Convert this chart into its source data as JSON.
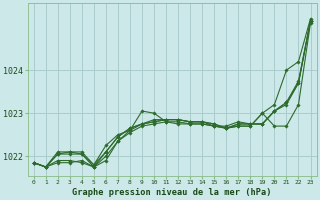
{
  "title": "Graphe pression niveau de la mer (hPa)",
  "bg_color": "#cce8e8",
  "grid_color": "#aacccc",
  "line_color": "#2d6b2d",
  "x_labels": [
    "0",
    "1",
    "2",
    "3",
    "4",
    "5",
    "6",
    "7",
    "8",
    "9",
    "10",
    "11",
    "12",
    "13",
    "14",
    "15",
    "16",
    "17",
    "18",
    "19",
    "20",
    "21",
    "22",
    "23"
  ],
  "ylim": [
    1021.55,
    1025.55
  ],
  "yticks": [
    1022,
    1023,
    1024
  ],
  "ytick_labels": [
    "1022",
    "1023",
    "1024"
  ],
  "figsize": [
    3.2,
    2.0
  ],
  "dpi": 100,
  "series": [
    [
      1021.85,
      1021.75,
      1021.85,
      1021.85,
      1021.9,
      1021.75,
      1021.9,
      1022.35,
      1022.6,
      1023.05,
      1023.0,
      1022.8,
      1022.75,
      1022.75,
      1022.75,
      1022.7,
      1022.65,
      1022.7,
      1022.7,
      1023.0,
      1022.7,
      1022.7,
      1023.2,
      1025.1
    ],
    [
      1021.85,
      1021.75,
      1022.05,
      1022.1,
      1022.05,
      1021.75,
      1022.1,
      1022.45,
      1022.65,
      1022.75,
      1022.8,
      1022.85,
      1022.85,
      1022.8,
      1022.8,
      1022.75,
      1022.65,
      1022.75,
      1022.75,
      1022.75,
      1023.05,
      1023.25,
      1023.7,
      1025.15
    ],
    [
      1021.85,
      1021.75,
      1022.1,
      1022.1,
      1022.1,
      1021.8,
      1022.25,
      1022.5,
      1022.6,
      1022.75,
      1022.85,
      1022.85,
      1022.85,
      1022.8,
      1022.8,
      1022.7,
      1022.7,
      1022.8,
      1022.75,
      1022.75,
      1023.05,
      1023.25,
      1023.75,
      1025.15
    ],
    [
      1021.85,
      1021.75,
      1022.05,
      1022.05,
      1022.05,
      1021.8,
      1022.1,
      1022.45,
      1022.65,
      1022.75,
      1022.8,
      1022.85,
      1022.85,
      1022.8,
      1022.8,
      1022.75,
      1022.65,
      1022.75,
      1022.75,
      1022.75,
      1023.05,
      1023.2,
      1023.7,
      1025.15
    ],
    [
      1021.85,
      1021.75,
      1021.9,
      1021.9,
      1021.85,
      1021.75,
      1022.0,
      1022.35,
      1022.55,
      1022.7,
      1022.75,
      1022.8,
      1022.8,
      1022.75,
      1022.75,
      1022.7,
      1022.65,
      1022.7,
      1022.7,
      1023.0,
      1023.2,
      1024.0,
      1024.2,
      1025.2
    ]
  ]
}
